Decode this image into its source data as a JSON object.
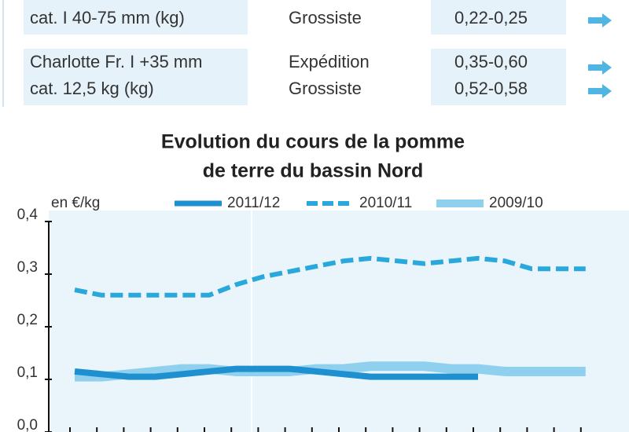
{
  "table": {
    "rows": [
      {
        "product": [
          "cat. I 40-75 mm (kg)"
        ],
        "stage": [
          "Grossiste"
        ],
        "price": [
          "0,22-0,25"
        ]
      },
      {
        "product": [
          "Charlotte Fr. I +35 mm",
          "cat. 12,5 kg (kg)"
        ],
        "stage": [
          "Expédition",
          "Grossiste"
        ],
        "price": [
          "0,35-0,60",
          "0,52-0,58"
        ]
      }
    ]
  },
  "chart_data": {
    "type": "line",
    "title": [
      "Evolution du cours de la pomme",
      "de terre du bassin Nord"
    ],
    "y_label": "en €/kg",
    "categories": [
      null,
      null,
      null,
      null,
      null,
      null,
      null,
      null,
      null,
      null,
      null,
      null,
      null,
      null,
      null,
      null,
      null,
      null,
      null,
      null
    ],
    "series": [
      {
        "name": "2011/12",
        "color": "#1e8fcf",
        "style": "solid",
        "values": [
          0.115,
          0.11,
          0.105,
          0.105,
          0.11,
          0.115,
          0.12,
          0.12,
          0.12,
          0.115,
          0.11,
          0.105,
          0.105,
          0.105,
          0.105,
          0.105,
          null,
          null,
          null,
          null
        ]
      },
      {
        "name": "2010/11",
        "color": "#29a8dc",
        "style": "dashed",
        "values": [
          0.27,
          0.26,
          0.26,
          0.26,
          0.26,
          0.26,
          0.28,
          0.295,
          0.305,
          0.315,
          0.325,
          0.33,
          0.325,
          0.32,
          0.325,
          0.33,
          0.325,
          0.31,
          0.31,
          0.31
        ]
      },
      {
        "name": "2009/10",
        "color": "#8fd0ee",
        "style": "solid",
        "values": [
          0.105,
          0.105,
          0.11,
          0.115,
          0.12,
          0.12,
          0.115,
          0.115,
          0.115,
          0.12,
          0.12,
          0.125,
          0.125,
          0.125,
          0.12,
          0.12,
          0.115,
          0.115,
          0.115,
          0.115
        ]
      }
    ],
    "ylim": [
      0,
      0.4
    ],
    "yticks": [
      {
        "value": 0,
        "label": "0,0"
      },
      {
        "value": 0.1,
        "label": "0,1"
      },
      {
        "value": 0.2,
        "label": "0,2"
      },
      {
        "value": 0.3,
        "label": "0,3"
      },
      {
        "value": 0.4,
        "label": "0,4"
      }
    ]
  }
}
